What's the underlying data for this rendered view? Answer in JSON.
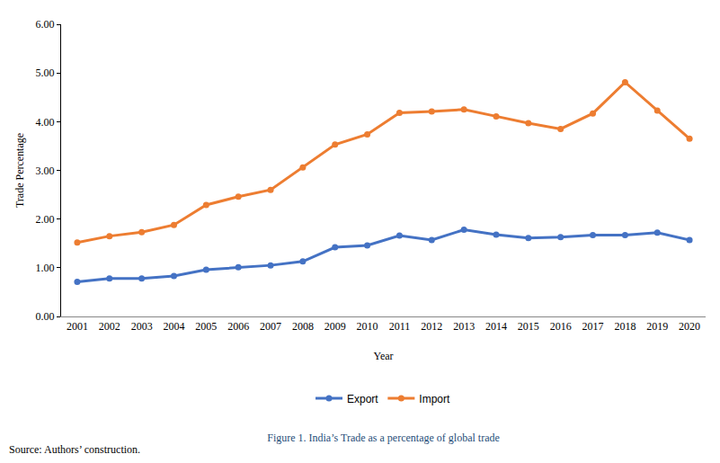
{
  "chart_data": {
    "type": "line",
    "title": "Figure 1. India’s Trade as a percentage of global trade",
    "annotations": [
      "Source: Authors’ construction."
    ],
    "x_label": "Year",
    "y_label": "Trade Percentage",
    "categories": [
      "2001",
      "2002",
      "2003",
      "2004",
      "2005",
      "2006",
      "2007",
      "2008",
      "2009",
      "2010",
      "2011",
      "2012",
      "2013",
      "2014",
      "2015",
      "2016",
      "2017",
      "2018",
      "2019",
      "2020"
    ],
    "series": [
      {
        "name": "Export",
        "color": "#4472c4",
        "marker": "circle",
        "values": [
          0.71,
          0.78,
          0.78,
          0.83,
          0.96,
          1.01,
          1.05,
          1.13,
          1.42,
          1.46,
          1.66,
          1.57,
          1.78,
          1.68,
          1.61,
          1.63,
          1.67,
          1.67,
          1.72,
          1.57
        ]
      },
      {
        "name": "Import",
        "color": "#ed7d31",
        "marker": "circle",
        "values": [
          1.52,
          1.65,
          1.73,
          1.88,
          2.29,
          2.46,
          2.6,
          3.06,
          3.53,
          3.74,
          4.18,
          4.21,
          4.25,
          4.11,
          3.97,
          3.85,
          4.17,
          4.81,
          4.23,
          3.65
        ]
      }
    ],
    "ylim": [
      0,
      6
    ],
    "yticks": [
      {
        "value": 0,
        "label": "0.00"
      },
      {
        "value": 1,
        "label": "1.00"
      },
      {
        "value": 2,
        "label": "2.00"
      },
      {
        "value": 3,
        "label": "3.00"
      },
      {
        "value": 4,
        "label": "4.00"
      },
      {
        "value": 5,
        "label": "5.00"
      },
      {
        "value": 6,
        "label": "6.00"
      }
    ],
    "grid": false,
    "legend": "bottom"
  }
}
